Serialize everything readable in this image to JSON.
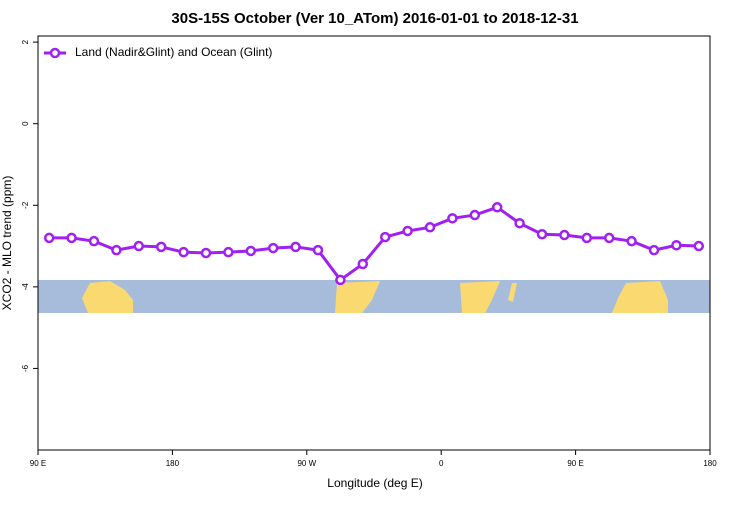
{
  "chart_data": {
    "type": "line",
    "title": "30S-15S October (Ver 10_ATom)   2016-01-01 to 2018-12-31",
    "x_label": "Longitude (deg E)",
    "y_label": "XCO2 - MLO trend (ppm)",
    "xlim": [
      90,
      540
    ],
    "ylim": [
      -8,
      2.15
    ],
    "xticks": [
      {
        "value": 90,
        "label": "90 E"
      },
      180,
      {
        "value": 270,
        "label": "90 W"
      },
      {
        "value": 360,
        "label": "0"
      },
      {
        "value": 450,
        "label": "90 E"
      },
      {
        "value": 540,
        "label": "180"
      }
    ],
    "yticks": [
      -6,
      -4,
      -2,
      0,
      2
    ],
    "legend": "top-left",
    "x": [
      97.5,
      112.5,
      127.5,
      142.5,
      157.5,
      172.5,
      187.5,
      202.5,
      217.5,
      232.5,
      247.5,
      262.5,
      277.5,
      292.5,
      307.5,
      322.5,
      337.5,
      352.5,
      367.5,
      382.5,
      397.5,
      412.5,
      427.5,
      442.5,
      457.5,
      472.5,
      487.5,
      502.5,
      517.5,
      532.5
    ],
    "series": [
      {
        "name": "Land (Nadir&Glint) and Ocean (Glint)",
        "color": "#a020f0",
        "values": [
          -2.8,
          -2.8,
          -2.88,
          -3.1,
          -3.0,
          -3.02,
          -3.15,
          -3.17,
          -3.15,
          -3.12,
          -3.05,
          -3.02,
          -3.1,
          -3.83,
          -3.44,
          -2.78,
          -2.63,
          -2.54,
          -2.32,
          -2.24,
          -2.05,
          -2.44,
          -2.71,
          -2.73,
          -2.8,
          -2.8,
          -2.88,
          -3.1,
          -2.98,
          -3.0
        ]
      }
    ]
  }
}
